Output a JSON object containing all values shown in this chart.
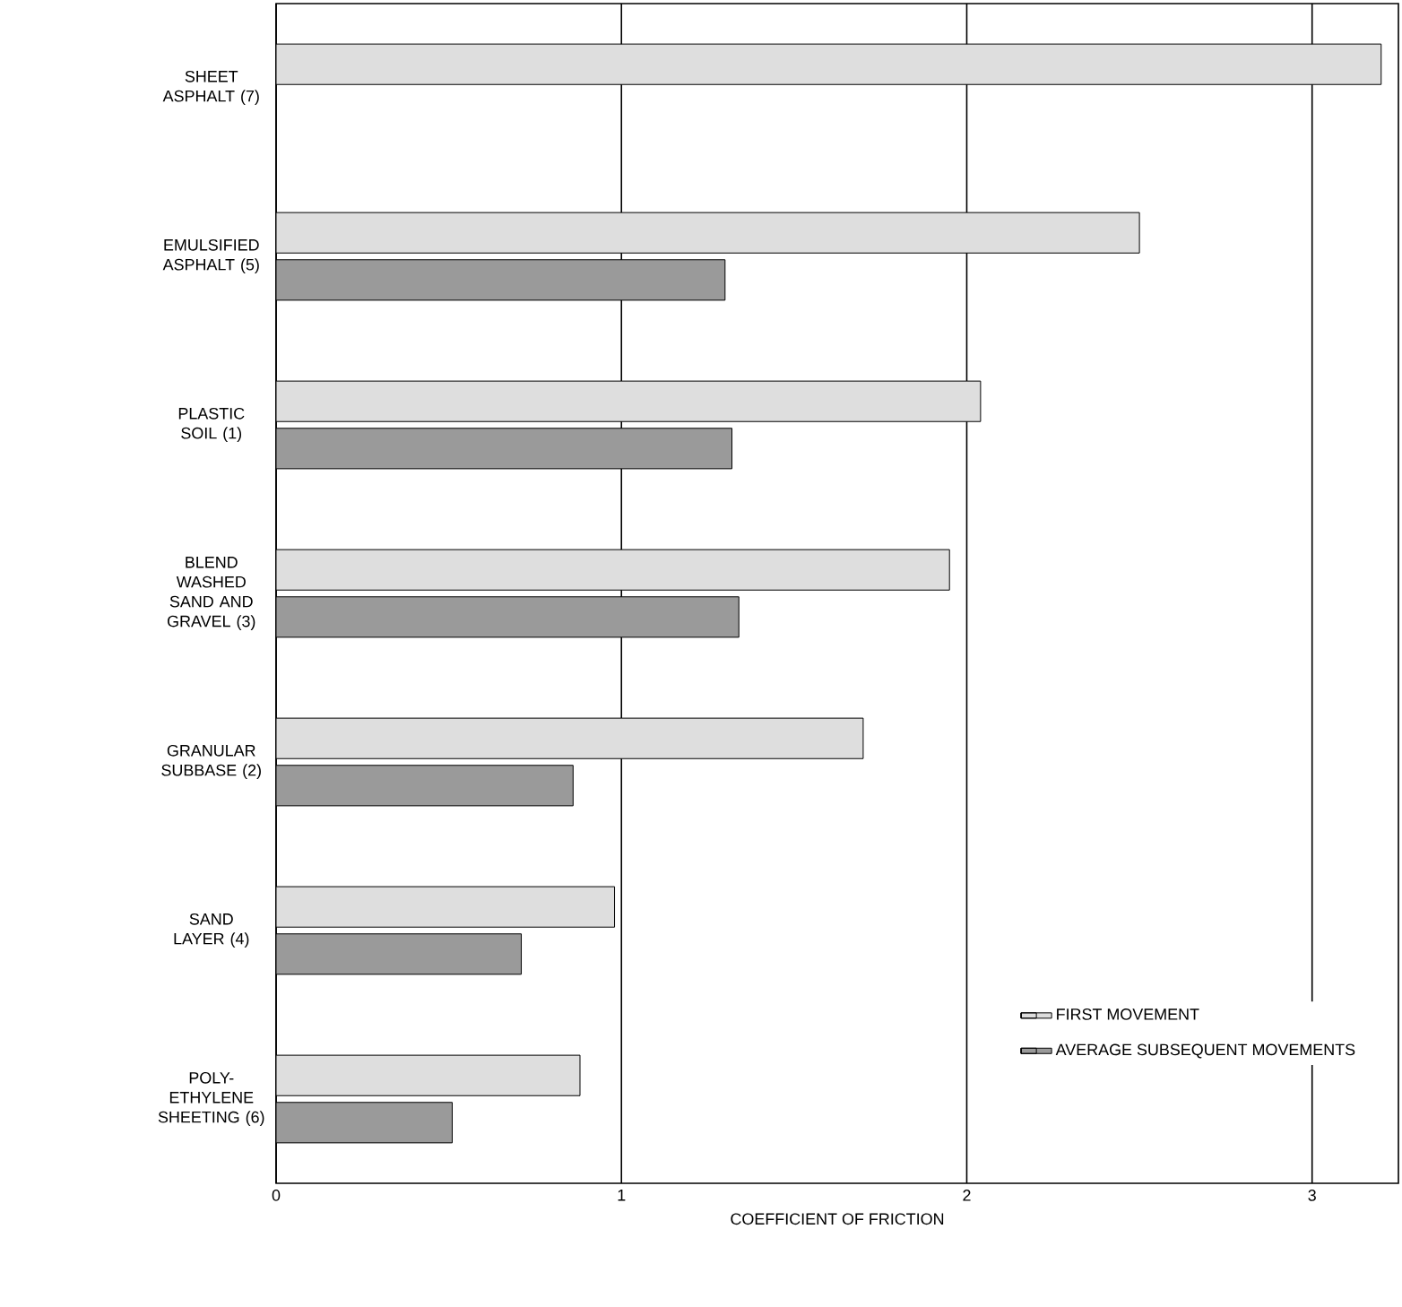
{
  "chart_data": {
    "type": "bar",
    "orientation": "horizontal",
    "xlabel": "COEFFICIENT OF FRICTION",
    "categories": [
      "SHEET ASPHALT (7)",
      "EMULSIFIED ASPHALT (5)",
      "PLASTIC SOIL (1)",
      "BLEND WASHED SAND AND GRAVEL (3)",
      "GRANULAR SUBBASE (2)",
      "SAND LAYER (4)",
      "POLY-ETHYLENE SHEETING (6)"
    ],
    "series": [
      {
        "name": "FIRST MOVEMENT",
        "color": "#dedede",
        "values": [
          3.2,
          2.5,
          2.04,
          1.95,
          1.7,
          0.98,
          0.88
        ]
      },
      {
        "name": "AVERAGE SUBSEQUENT MOVEMENTS",
        "color": "#9a9a9a",
        "values": [
          null,
          1.3,
          1.32,
          1.34,
          0.86,
          0.71,
          0.51
        ]
      }
    ],
    "xlim": [
      0,
      3.25
    ],
    "xticks": [
      0,
      1,
      2,
      3
    ],
    "grid": "x",
    "legend": "bottom right"
  }
}
